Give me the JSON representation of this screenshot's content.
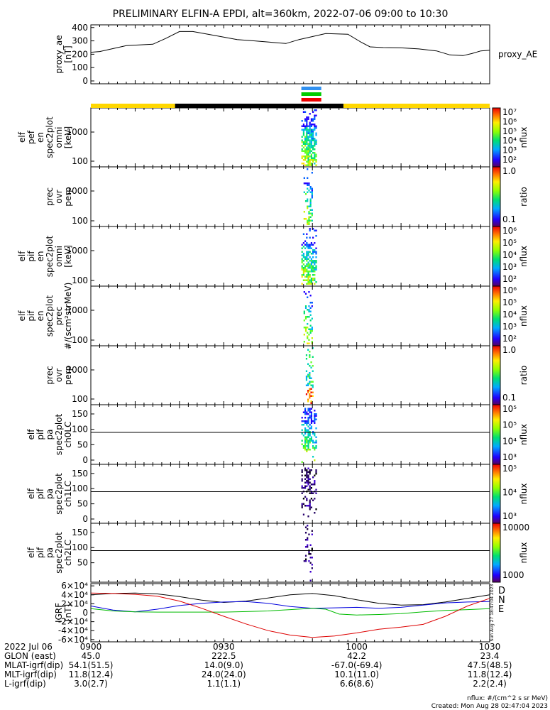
{
  "title": "PRELIMINARY ELFIN-A EPDI, alt=360km, 2022-07-06 09:00 to 10:30",
  "chart_data": [
    {
      "type": "line",
      "name": "proxy_ae",
      "ylabel_lines": [
        "proxy_ae",
        "[nT]"
      ],
      "legend": "proxy_AE",
      "ylim": [
        0,
        420
      ],
      "yticks": [
        "0",
        "100",
        "200",
        "300",
        "400"
      ],
      "x_minutes": [
        0,
        2,
        8,
        14,
        17,
        20,
        23,
        28,
        33,
        37,
        44,
        47,
        53,
        58,
        61,
        63,
        66,
        70,
        74,
        78,
        81,
        84,
        86,
        88,
        90
      ],
      "y_values": [
        215,
        220,
        265,
        275,
        320,
        370,
        370,
        340,
        310,
        300,
        280,
        310,
        355,
        350,
        290,
        255,
        250,
        248,
        240,
        225,
        195,
        190,
        205,
        225,
        230
      ]
    },
    {
      "type": "heatmap",
      "name": "elf_pef_en_spec2plot_omni",
      "ylabel_lines": [
        "elf",
        "pef",
        "en",
        "spec2plot",
        "omni",
        "[keV]"
      ],
      "yticks": [
        "100",
        "1000"
      ],
      "colorbar_label": "nflux",
      "colorbar_ticks": [
        "10²",
        "10³",
        "10⁴",
        "10⁵",
        "10⁶",
        "10⁷"
      ],
      "active_minutes": [
        47.5,
        51
      ]
    },
    {
      "type": "heatmap",
      "name": "prec_ovr_perp",
      "ylabel_lines": [
        "prec",
        "ovr",
        "perp"
      ],
      "yticks": [
        "100",
        "1000"
      ],
      "colorbar_label": "ratio",
      "colorbar_ticks": [
        "0.1",
        "1.0"
      ],
      "active_minutes": [
        48,
        50
      ]
    },
    {
      "type": "heatmap",
      "name": "elf_pif_en_spec2plot_omni",
      "ylabel_lines": [
        "elf",
        "pif",
        "en",
        "spec2plot",
        "omni",
        "[keV]"
      ],
      "yticks": [
        "100",
        "1000"
      ],
      "colorbar_label": "nflux",
      "colorbar_ticks": [
        "10²",
        "10³",
        "10⁴",
        "10⁵",
        "10⁶"
      ],
      "active_minutes": [
        47.5,
        51
      ]
    },
    {
      "type": "heatmap",
      "name": "elf_pif_en_spec2plot_prec",
      "ylabel_lines": [
        "elf",
        "pif",
        "en",
        "spec2plot",
        "prec",
        "#/(scm²strMeV)"
      ],
      "yticks": [
        "100",
        "1000"
      ],
      "colorbar_label": "nflux",
      "colorbar_ticks": [
        "10²",
        "10³",
        "10⁴",
        "10⁵",
        "10⁶"
      ],
      "active_minutes": [
        48,
        50
      ]
    },
    {
      "type": "heatmap",
      "name": "prec_ovr_perp_2",
      "ylabel_lines": [
        "prec",
        "ovr",
        "perp"
      ],
      "yticks": [
        "100",
        "1000"
      ],
      "colorbar_label": "ratio",
      "colorbar_ticks": [
        "0.1",
        "1.0"
      ],
      "active_minutes": [
        48.5,
        50
      ]
    },
    {
      "type": "heatmap",
      "name": "elf_pif_pa_spec2plot_ch0LC",
      "ylabel_lines": [
        "elf",
        "pif",
        "pa",
        "spec2plot",
        "ch0LC"
      ],
      "yticks": [
        "0",
        "50",
        "100",
        "150"
      ],
      "colorbar_label": "nflux",
      "colorbar_ticks": [
        "10³",
        "10⁴",
        "10⁵",
        "10⁵"
      ],
      "active_minutes": [
        47.5,
        51
      ]
    },
    {
      "type": "heatmap",
      "name": "elf_pif_pa_spec2plot_ch1LC",
      "ylabel_lines": [
        "elf",
        "pif",
        "pa",
        "spec2plot",
        "ch1LC"
      ],
      "yticks": [
        "0",
        "50",
        "100",
        "150"
      ],
      "colorbar_label": "nflux",
      "colorbar_ticks": [
        "10³",
        "10⁴",
        "10⁵"
      ],
      "active_minutes": [
        47.5,
        51
      ]
    },
    {
      "type": "heatmap",
      "name": "elf_pif_pa_spec2plot_ch2LC",
      "ylabel_lines": [
        "elf",
        "pif",
        "pa",
        "spec2plot",
        "ch2LC"
      ],
      "yticks": [
        "50",
        "100",
        "150"
      ],
      "colorbar_label": "nflux",
      "colorbar_ticks": [
        "1000",
        "10000"
      ],
      "active_minutes": [
        48,
        50
      ]
    },
    {
      "type": "line",
      "name": "IGRF",
      "ylabel_lines": [
        "IGRF",
        "[nT]"
      ],
      "ylim": [
        -65000,
        65000
      ],
      "yticks": [
        "-6×10⁴",
        "-4×10⁴",
        "-2×10⁴",
        "0",
        "2×10⁴",
        "4×10⁴",
        "6×10⁴"
      ],
      "legend_text_labels": [
        "D",
        "N",
        "E"
      ],
      "side_stamp": "Sun Aug 27 18:47:04 2023",
      "series": [
        {
          "color": "#000000",
          "x_minutes": [
            0,
            5,
            10,
            15,
            20,
            25,
            30,
            35,
            40,
            45,
            50,
            55,
            60,
            65,
            70,
            75,
            80,
            85,
            90
          ],
          "values": [
            40000,
            43000,
            44000,
            42000,
            36000,
            28000,
            23000,
            26000,
            33000,
            40000,
            43000,
            38000,
            29000,
            21000,
            17000,
            18000,
            24000,
            32000,
            40000
          ]
        },
        {
          "color": "#0000dd",
          "x_minutes": [
            0,
            5,
            10,
            15,
            20,
            25,
            30,
            35,
            40,
            45,
            50,
            55,
            60,
            65,
            70,
            75,
            80,
            85,
            90
          ],
          "values": [
            15000,
            6000,
            2000,
            8000,
            16000,
            21000,
            24000,
            25000,
            21000,
            14000,
            10000,
            11000,
            12000,
            10000,
            12000,
            17000,
            22000,
            24000,
            25000
          ]
        },
        {
          "color": "#00bb00",
          "x_minutes": [
            0,
            5,
            10,
            15,
            20,
            25,
            30,
            35,
            40,
            45,
            50,
            53,
            56,
            60,
            65,
            70,
            75,
            80,
            85,
            90
          ],
          "values": [
            9000,
            4000,
            2000,
            1500,
            1500,
            1500,
            1500,
            2500,
            4000,
            7000,
            10000,
            8000,
            -3000,
            -5000,
            -4000,
            -2000,
            2000,
            5000,
            7000,
            9000
          ]
        },
        {
          "color": "#dd0000",
          "x_minutes": [
            0,
            5,
            10,
            15,
            20,
            25,
            30,
            35,
            40,
            45,
            50,
            55,
            60,
            65,
            70,
            75,
            80,
            85,
            90
          ],
          "values": [
            44000,
            43000,
            41000,
            37000,
            26000,
            10000,
            -8000,
            -25000,
            -40000,
            -50000,
            -55000,
            -52000,
            -45000,
            -37000,
            -32000,
            -26000,
            -8000,
            15000,
            32000
          ]
        }
      ]
    }
  ],
  "top_bar": {
    "segments": [
      {
        "color": "#ffd700",
        "from_min": 0,
        "to_min": 19
      },
      {
        "color": "#000000",
        "from_min": 19,
        "to_min": 57
      },
      {
        "color": "#ffd700",
        "from_min": 57,
        "to_min": 90
      }
    ],
    "markers": [
      {
        "color": "#3090f0",
        "from_min": 47.5,
        "to_min": 52
      },
      {
        "color": "#00cc00",
        "from_min": 47.5,
        "to_min": 52
      },
      {
        "color": "#ee0000",
        "from_min": 47.5,
        "to_min": 52
      }
    ]
  },
  "x_axis": {
    "ticks": [
      "0900",
      "0930",
      "1000",
      "1030"
    ],
    "tick_minutes": [
      0,
      30,
      60,
      90
    ],
    "date": "2022 Jul 06"
  },
  "ephemeris": {
    "labels": [
      "GLON (east)",
      "MLAT-igrf(dip)",
      "MLT-igrf(dip)",
      "L-igrf(dip)"
    ],
    "rows": [
      [
        "45.0",
        "222.5",
        "42.2",
        "23.4"
      ],
      [
        "54.1(51.5)",
        "14.0(9.0)",
        "-67.0(-69.4)",
        "47.5(48.5)"
      ],
      [
        "11.8(12.4)",
        "24.0(24.0)",
        "10.1(11.0)",
        "11.8(12.4)"
      ],
      [
        "3.0(2.7)",
        "1.1(1.1)",
        "6.6(8.6)",
        "2.2(2.4)"
      ]
    ]
  },
  "footer": {
    "units": "nflux: #/(cm^2 s sr MeV)",
    "created": "Created: Mon Aug 28 02:47:04 2023"
  }
}
